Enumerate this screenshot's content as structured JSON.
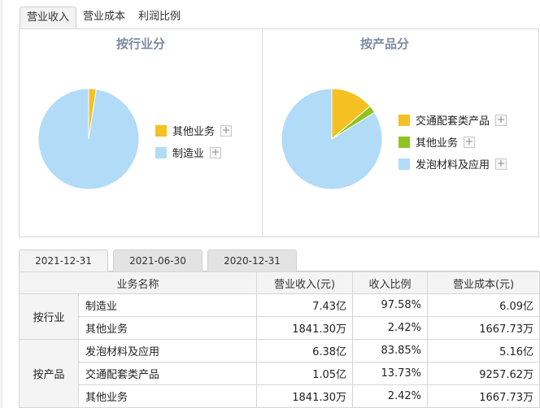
{
  "top_tabs": [
    {
      "label": "营业收入",
      "active": true
    },
    {
      "label": "营业成本",
      "active": false
    },
    {
      "label": "利润比例",
      "active": false
    }
  ],
  "industry_chart": {
    "title": "按行业分",
    "legend": [
      {
        "label": "其他业务",
        "color": "#f5c022"
      },
      {
        "label": "制造业",
        "color": "#b2dbf8"
      }
    ]
  },
  "product_chart": {
    "title": "按产品分",
    "legend": [
      {
        "label": "交通配套类产品",
        "color": "#f5c022"
      },
      {
        "label": "其他业务",
        "color": "#8fc31f"
      },
      {
        "label": "发泡材料及应用",
        "color": "#b2dbf8"
      }
    ]
  },
  "legend_toggle_symbol": "+",
  "chart_data": [
    {
      "type": "pie",
      "title": "按行业分",
      "categories": [
        "其他业务",
        "制造业"
      ],
      "values": [
        2.42,
        97.58
      ],
      "colors": [
        "#f5c022",
        "#b2dbf8"
      ]
    },
    {
      "type": "pie",
      "title": "按产品分",
      "categories": [
        "交通配套类产品",
        "其他业务",
        "发泡材料及应用"
      ],
      "values": [
        13.73,
        2.42,
        83.85
      ],
      "colors": [
        "#f5c022",
        "#8fc31f",
        "#b2dbf8"
      ]
    }
  ],
  "date_tabs": [
    {
      "label": "2021-12-31",
      "active": true
    },
    {
      "label": "2021-06-30",
      "active": false
    },
    {
      "label": "2020-12-31",
      "active": false
    }
  ],
  "table": {
    "headers": [
      "业务名称",
      "营业收入(元)",
      "收入比例",
      "营业成本(元)"
    ],
    "groups": [
      {
        "label": "按行业",
        "rows": [
          {
            "name": "制造业",
            "revenue": "7.43亿",
            "ratio": "97.58%",
            "cost": "6.09亿"
          },
          {
            "name": "其他业务",
            "revenue": "1841.30万",
            "ratio": "2.42%",
            "cost": "1667.73万"
          }
        ]
      },
      {
        "label": "按产品",
        "rows": [
          {
            "name": "发泡材料及应用",
            "revenue": "6.38亿",
            "ratio": "83.85%",
            "cost": "5.16亿"
          },
          {
            "name": "交通配套类产品",
            "revenue": "1.05亿",
            "ratio": "13.73%",
            "cost": "9257.62万"
          },
          {
            "name": "其他业务",
            "revenue": "1841.30万",
            "ratio": "2.42%",
            "cost": "1667.73万"
          }
        ]
      }
    ]
  }
}
